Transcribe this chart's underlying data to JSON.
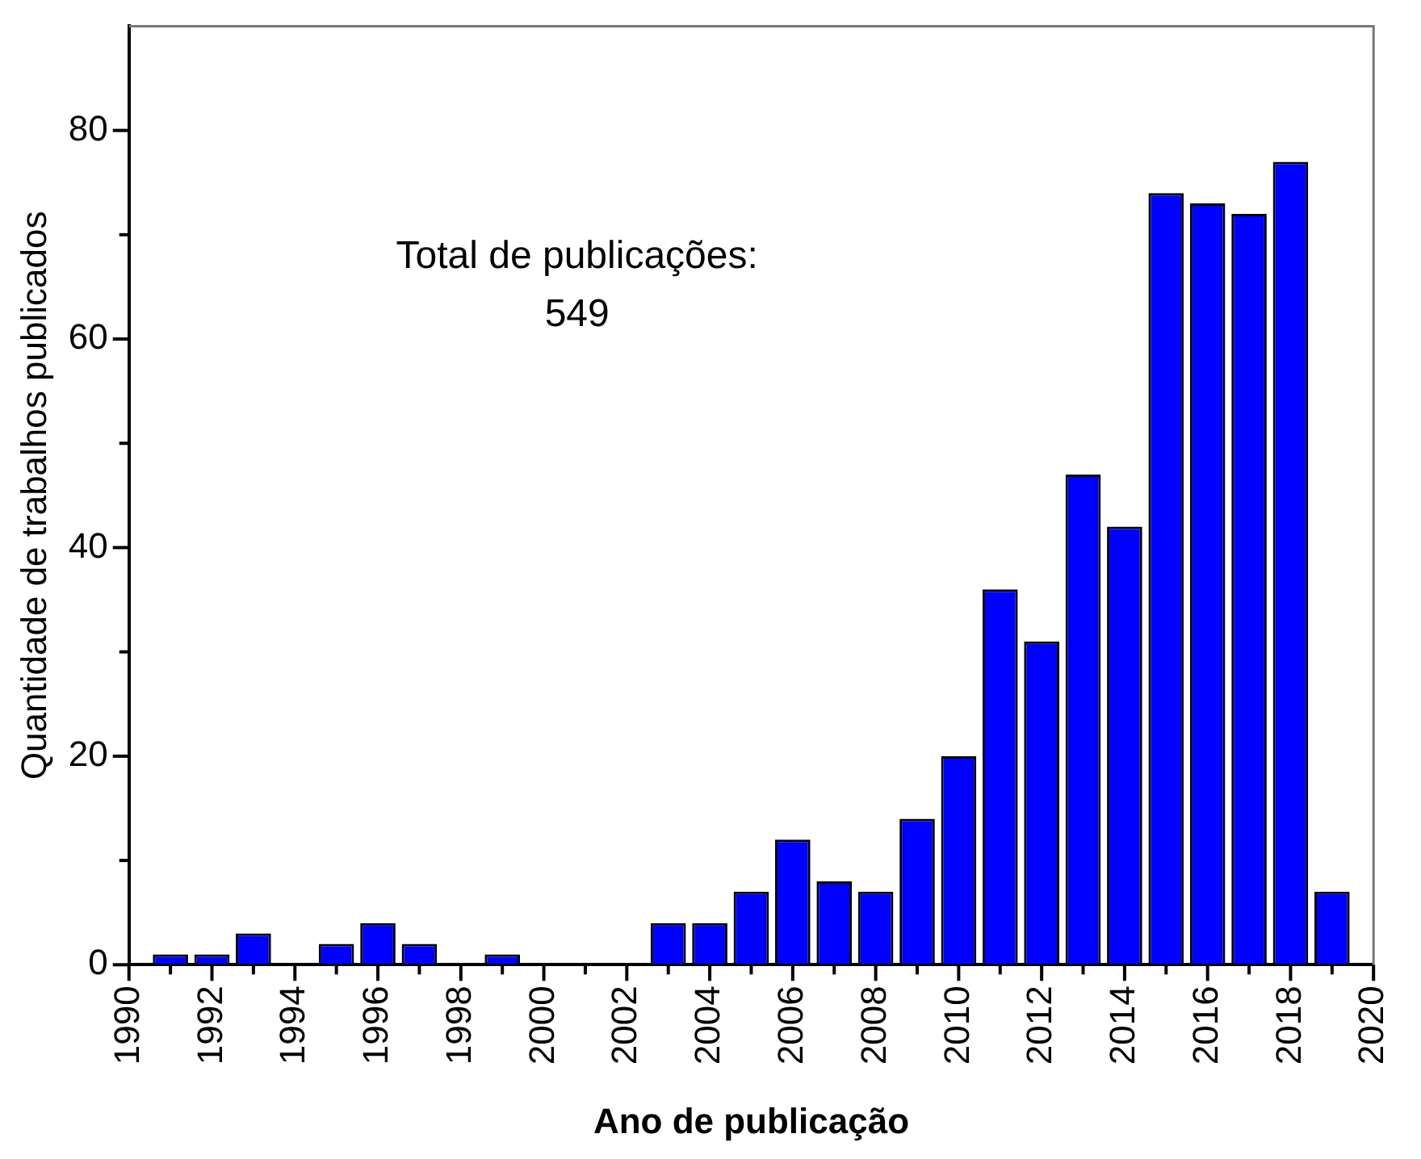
{
  "chart_data": {
    "type": "bar",
    "xlabel": "Ano de publicação",
    "ylabel": "Quantidade de trabalhos publicados",
    "x": [
      1991,
      1992,
      1993,
      1995,
      1996,
      1997,
      1999,
      2003,
      2004,
      2005,
      2006,
      2007,
      2008,
      2009,
      2010,
      2011,
      2012,
      2013,
      2014,
      2015,
      2016,
      2017,
      2018,
      2019
    ],
    "values": [
      1,
      1,
      3,
      2,
      4,
      2,
      1,
      4,
      4,
      7,
      12,
      8,
      7,
      14,
      20,
      36,
      31,
      47,
      42,
      74,
      73,
      72,
      77,
      7
    ],
    "color": "#0000ff",
    "xlim": [
      1990,
      2020
    ],
    "xticks": [
      1990,
      {
        "value": 1991,
        "label": null
      },
      1992,
      {
        "value": 1993,
        "label": null
      },
      1994,
      {
        "value": 1995,
        "label": null
      },
      1996,
      {
        "value": 1997,
        "label": null
      },
      1998,
      {
        "value": 1999,
        "label": null
      },
      2000,
      {
        "value": 2001,
        "label": null
      },
      2002,
      {
        "value": 2003,
        "label": null
      },
      2004,
      {
        "value": 2005,
        "label": null
      },
      2006,
      {
        "value": 2007,
        "label": null
      },
      2008,
      {
        "value": 2009,
        "label": null
      },
      2010,
      {
        "value": 2011,
        "label": null
      },
      2012,
      {
        "value": 2013,
        "label": null
      },
      2014,
      {
        "value": 2015,
        "label": null
      },
      2016,
      {
        "value": 2017,
        "label": null
      },
      2018,
      {
        "value": 2019,
        "label": null
      },
      2020
    ],
    "ylim": [
      0,
      90
    ],
    "yticks": [
      0,
      {
        "value": 10,
        "label": null
      },
      20,
      {
        "value": 30,
        "label": null
      },
      40,
      {
        "value": 50,
        "label": null
      },
      60,
      {
        "value": 70,
        "label": null
      },
      80
    ],
    "annotations": [
      "Total de publicações:",
      "549"
    ],
    "grid": false,
    "legend": false
  }
}
